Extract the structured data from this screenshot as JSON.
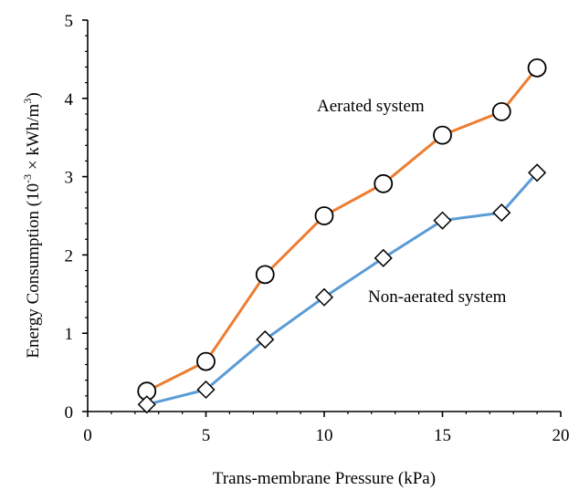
{
  "chart_data": {
    "type": "line",
    "xlabel": "Trans-membrane Pressure (kPa)",
    "ylabel": {
      "main": "Energy Consumption (10",
      "exp": "-3",
      "mid": " × kWh/m",
      "exp2": "3",
      "end": ")"
    },
    "xlim": [
      0,
      20
    ],
    "ylim": [
      0,
      5
    ],
    "xticks": [
      "0",
      "5",
      "10",
      "15",
      "20"
    ],
    "yticks": [
      "0",
      "1",
      "2",
      "3",
      "4",
      "5"
    ],
    "grid": false,
    "x": [
      2.5,
      5,
      7.5,
      10,
      12.5,
      15,
      17.5,
      19
    ],
    "series": [
      {
        "name": "Aerated system",
        "marker": "circle",
        "color": "#ED7D31",
        "values": [
          0.26,
          0.64,
          1.75,
          2.5,
          2.91,
          3.53,
          3.83,
          4.39
        ]
      },
      {
        "name": "Non-aerated system",
        "marker": "diamond",
        "color": "#5B9BD5",
        "values": [
          0.09,
          0.28,
          0.92,
          1.46,
          1.96,
          2.44,
          2.54,
          3.05
        ]
      }
    ],
    "annotations": [
      "Aerated system",
      "Non-aerated system"
    ]
  }
}
